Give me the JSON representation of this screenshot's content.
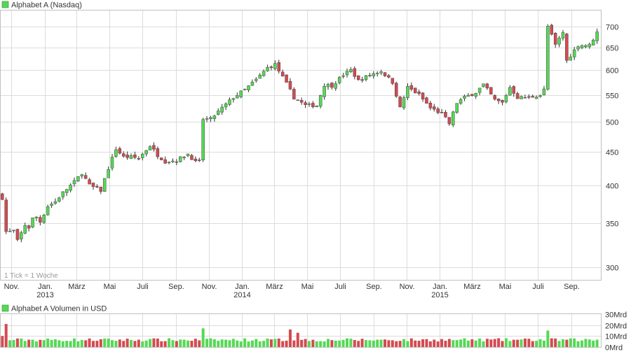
{
  "colors": {
    "up": "#55d955",
    "down": "#d44a50",
    "grid": "#dcdcdc",
    "frame": "#c0c0c0",
    "wick": "#333333"
  },
  "chart_data": [
    {
      "type": "candlestick",
      "title": "Alphabet A (Nasdaq)",
      "legend_position": "top-left",
      "grid": true,
      "y_scale": "log",
      "ylim": [
        287,
        740
      ],
      "y_ticks": [
        {
          "value": 300,
          "label": "300"
        },
        {
          "value": 350,
          "label": "350"
        },
        {
          "value": 400,
          "label": "400"
        },
        {
          "value": 450,
          "label": "450"
        },
        {
          "value": 500,
          "label": "500"
        },
        {
          "value": 550,
          "label": "550"
        },
        {
          "value": 600,
          "label": "600"
        },
        {
          "value": 650,
          "label": "650"
        },
        {
          "value": 700,
          "label": "700"
        }
      ],
      "x_range": [
        "2012-10-12",
        "2015-10-26"
      ],
      "x_ticks": [
        {
          "date": "2012-11-01",
          "label": "Nov.",
          "year": ""
        },
        {
          "date": "2013-01-01",
          "label": "Jan.",
          "year": "2013"
        },
        {
          "date": "2013-03-01",
          "label": "März",
          "year": ""
        },
        {
          "date": "2013-05-01",
          "label": "Mai",
          "year": ""
        },
        {
          "date": "2013-07-01",
          "label": "Juli",
          "year": ""
        },
        {
          "date": "2013-09-01",
          "label": "Sep.",
          "year": ""
        },
        {
          "date": "2013-11-01",
          "label": "Nov.",
          "year": ""
        },
        {
          "date": "2014-01-01",
          "label": "Jan.",
          "year": "2014"
        },
        {
          "date": "2014-03-01",
          "label": "März",
          "year": ""
        },
        {
          "date": "2014-05-01",
          "label": "Mai",
          "year": ""
        },
        {
          "date": "2014-07-01",
          "label": "Juli",
          "year": ""
        },
        {
          "date": "2014-09-01",
          "label": "Sep.",
          "year": ""
        },
        {
          "date": "2014-11-01",
          "label": "Nov.",
          "year": ""
        },
        {
          "date": "2015-01-01",
          "label": "Jan.",
          "year": "2015"
        },
        {
          "date": "2015-03-01",
          "label": "März",
          "year": ""
        },
        {
          "date": "2015-05-01",
          "label": "Mai",
          "year": ""
        },
        {
          "date": "2015-07-01",
          "label": "Juli",
          "year": ""
        },
        {
          "date": "2015-09-01",
          "label": "Sep.",
          "year": ""
        }
      ],
      "note": "1 Tick = 1 Woche",
      "close_anchors": [
        [
          "2012-10-15",
          383
        ],
        [
          "2012-10-22",
          340
        ],
        [
          "2012-10-29",
          340
        ],
        [
          "2012-11-05",
          341
        ],
        [
          "2012-11-12",
          329
        ],
        [
          "2012-11-19",
          338
        ],
        [
          "2012-11-26",
          348
        ],
        [
          "2012-12-03",
          345
        ],
        [
          "2012-12-10",
          356
        ],
        [
          "2012-12-17",
          358
        ],
        [
          "2012-12-24",
          352
        ],
        [
          "2013-01-07",
          372
        ],
        [
          "2013-01-21",
          378
        ],
        [
          "2013-02-04",
          390
        ],
        [
          "2013-02-25",
          405
        ],
        [
          "2013-03-11",
          418
        ],
        [
          "2013-03-25",
          400
        ],
        [
          "2013-04-15",
          393
        ],
        [
          "2013-04-29",
          425
        ],
        [
          "2013-05-13",
          455
        ],
        [
          "2013-05-27",
          442
        ],
        [
          "2013-06-10",
          442
        ],
        [
          "2013-06-24",
          440
        ],
        [
          "2013-07-15",
          460
        ],
        [
          "2013-07-29",
          445
        ],
        [
          "2013-08-12",
          435
        ],
        [
          "2013-09-02",
          437
        ],
        [
          "2013-09-23",
          447
        ],
        [
          "2013-10-07",
          434
        ],
        [
          "2013-10-14",
          435
        ],
        [
          "2013-10-21",
          505
        ],
        [
          "2013-11-04",
          505
        ],
        [
          "2013-11-25",
          525
        ],
        [
          "2013-12-16",
          545
        ],
        [
          "2014-01-06",
          560
        ],
        [
          "2014-01-27",
          580
        ],
        [
          "2014-02-17",
          605
        ],
        [
          "2014-03-03",
          612
        ],
        [
          "2014-03-17",
          585
        ],
        [
          "2014-04-07",
          545
        ],
        [
          "2014-04-28",
          530
        ],
        [
          "2014-05-19",
          530
        ],
        [
          "2014-06-02",
          570
        ],
        [
          "2014-06-16",
          568
        ],
        [
          "2014-07-07",
          590
        ],
        [
          "2014-07-21",
          600
        ],
        [
          "2014-08-04",
          578
        ],
        [
          "2014-08-25",
          590
        ],
        [
          "2014-09-15",
          598
        ],
        [
          "2014-10-06",
          575
        ],
        [
          "2014-10-20",
          525
        ],
        [
          "2014-11-03",
          565
        ],
        [
          "2014-11-24",
          550
        ],
        [
          "2014-12-15",
          525
        ],
        [
          "2015-01-05",
          515
        ],
        [
          "2015-01-19",
          497
        ],
        [
          "2015-02-02",
          535
        ],
        [
          "2015-02-16",
          545
        ],
        [
          "2015-03-09",
          555
        ],
        [
          "2015-03-23",
          570
        ],
        [
          "2015-04-13",
          540
        ],
        [
          "2015-04-27",
          535
        ],
        [
          "2015-05-11",
          565
        ],
        [
          "2015-05-25",
          545
        ],
        [
          "2015-06-15",
          545
        ],
        [
          "2015-07-06",
          550
        ],
        [
          "2015-07-13",
          560
        ],
        [
          "2015-07-20",
          700
        ],
        [
          "2015-08-03",
          655
        ],
        [
          "2015-08-17",
          685
        ],
        [
          "2015-08-24",
          620
        ],
        [
          "2015-09-14",
          655
        ],
        [
          "2015-10-05",
          655
        ],
        [
          "2015-10-19",
          685
        ]
      ]
    },
    {
      "type": "bar",
      "title": "Alphabet A Volumen in USD",
      "legend_position": "top-left",
      "grid": true,
      "ylim": [
        0,
        30
      ],
      "y_ticks": [
        {
          "value": 0,
          "label": "0Mrd"
        },
        {
          "value": 10,
          "label": "10Mrd"
        },
        {
          "value": 20,
          "label": "20Mrd"
        },
        {
          "value": 30,
          "label": "30Mrd"
        }
      ],
      "unit": "Mrd USD",
      "typical_range": [
        5,
        8
      ],
      "peaks": [
        [
          "2012-10-15",
          10
        ],
        [
          "2012-10-22",
          21
        ],
        [
          "2013-10-21",
          17
        ],
        [
          "2014-03-31",
          16
        ],
        [
          "2014-04-14",
          13
        ],
        [
          "2015-07-20",
          15
        ]
      ]
    }
  ]
}
